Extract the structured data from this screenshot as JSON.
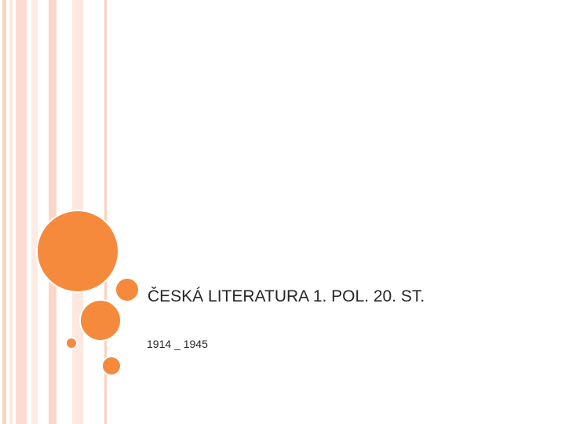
{
  "slide": {
    "title": "ČESKÁ LITERATURA 1. POL. 20. ST.",
    "subtitle": "1914 _ 1945"
  }
}
